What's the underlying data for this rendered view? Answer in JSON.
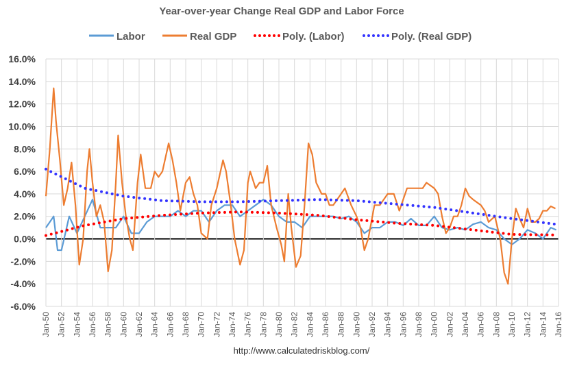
{
  "chart_data": {
    "type": "line",
    "title": "Year-over-year Change Real GDP and Labor Force",
    "footer": "http://www.calculatedriskblog.com/",
    "ylim": [
      -6,
      16
    ],
    "yticks": [
      "16.0%",
      "14.0%",
      "12.0%",
      "10.0%",
      "8.0%",
      "6.0%",
      "4.0%",
      "2.0%",
      "0.0%",
      "-2.0%",
      "-4.0%",
      "-6.0%"
    ],
    "yvalues": [
      16,
      14,
      12,
      10,
      8,
      6,
      4,
      2,
      0,
      -2,
      -4,
      -6
    ],
    "xlim": [
      1950,
      2016
    ],
    "xticks": [
      "Jan-50",
      "Jan-52",
      "Jan-54",
      "Jan-56",
      "Jan-58",
      "Jan-60",
      "Jan-62",
      "Jan-64",
      "Jan-66",
      "Jan-68",
      "Jan-70",
      "Jan-72",
      "Jan-74",
      "Jan-76",
      "Jan-78",
      "Jan-80",
      "Jan-82",
      "Jan-84",
      "Jan-86",
      "Jan-88",
      "Jan-90",
      "Jan-92",
      "Jan-94",
      "Jan-96",
      "Jan-98",
      "Jan-00",
      "Jan-02",
      "Jan-04",
      "Jan-06",
      "Jan-08",
      "Jan-10",
      "Jan-12",
      "Jan-14",
      "Jan-16"
    ],
    "grid": true,
    "legend_placement": "top",
    "series": [
      {
        "name": "Labor",
        "color": "#5B9BD5",
        "style": "solid",
        "x": [
          1950,
          1951,
          1951.5,
          1952,
          1953,
          1954,
          1955,
          1956,
          1957,
          1958,
          1959,
          1960,
          1961,
          1962,
          1963,
          1964,
          1965,
          1966,
          1967,
          1968,
          1969,
          1970,
          1971,
          1972,
          1973,
          1974,
          1975,
          1976,
          1977,
          1978,
          1979,
          1980,
          1981,
          1982,
          1983,
          1984,
          1985,
          1986,
          1987,
          1988,
          1989,
          1990,
          1991,
          1992,
          1993,
          1994,
          1995,
          1996,
          1997,
          1998,
          1999,
          2000,
          2001,
          2002,
          2003,
          2004,
          2005,
          2006,
          2007,
          2008,
          2009,
          2010,
          2011,
          2012,
          2013,
          2014,
          2015,
          2015.7
        ],
        "y": [
          1,
          2,
          -1,
          -1,
          2,
          0.5,
          2,
          3.5,
          1,
          1,
          1,
          2,
          0.5,
          0.5,
          1.5,
          2,
          2,
          2,
          2.5,
          2,
          2.5,
          2.5,
          1.5,
          2.5,
          3,
          3,
          2,
          2.5,
          3,
          3.5,
          3,
          2,
          1.5,
          1.5,
          1,
          2,
          2,
          2,
          2,
          1.8,
          2,
          1.5,
          0.5,
          1,
          1,
          1.5,
          1.5,
          1.2,
          1.8,
          1.2,
          1.2,
          2,
          1,
          0.8,
          1,
          0.8,
          1.3,
          1.5,
          1,
          0.8,
          0,
          -0.5,
          0,
          0.8,
          0.5,
          0,
          1,
          0.8
        ]
      },
      {
        "name": "Real GDP",
        "color": "#ED7D31",
        "style": "solid",
        "x": [
          1950,
          1950.5,
          1951,
          1951.3,
          1951.8,
          1952.3,
          1952.8,
          1953.3,
          1953.8,
          1954.3,
          1954.8,
          1955.3,
          1955.6,
          1956,
          1956.5,
          1957,
          1957.5,
          1958,
          1958.5,
          1959,
          1959.3,
          1959.8,
          1960.3,
          1960.8,
          1961.2,
          1961.8,
          1962.2,
          1962.8,
          1963.5,
          1964,
          1964.5,
          1965,
          1965.8,
          1966.3,
          1966.8,
          1967.3,
          1968,
          1968.5,
          1969,
          1969.5,
          1970,
          1970.8,
          1971.3,
          1972,
          1972.8,
          1973.2,
          1973.8,
          1974.3,
          1975,
          1975.5,
          1976,
          1976.3,
          1977,
          1977.5,
          1978,
          1978.5,
          1979,
          1979.7,
          1980.3,
          1980.7,
          1981.2,
          1981.6,
          1982.2,
          1982.8,
          1983.3,
          1983.8,
          1984.3,
          1984.8,
          1985.5,
          1986,
          1986.5,
          1987,
          1988,
          1988.5,
          1989.3,
          1990,
          1990.5,
          1991,
          1991.5,
          1992.3,
          1993,
          1994,
          1994.8,
          1995.5,
          1996.5,
          1997.5,
          1998.5,
          1999,
          2000,
          2000.5,
          2001,
          2001.5,
          2002,
          2002.5,
          2003,
          2003.5,
          2004,
          2004.5,
          2005,
          2006,
          2006.5,
          2007,
          2007.8,
          2008.5,
          2009,
          2009.5,
          2010,
          2010.5,
          2011,
          2011.5,
          2012,
          2012.5,
          2013,
          2013.5,
          2014,
          2014.5,
          2015,
          2015.6
        ],
        "y": [
          3.8,
          8,
          13.4,
          10.5,
          7,
          3,
          4.5,
          6.8,
          3,
          -2.3,
          0,
          6,
          8,
          5,
          2,
          3,
          1.5,
          -2.9,
          -1,
          5,
          9.2,
          5,
          2,
          0,
          -1,
          5,
          7.5,
          4.5,
          4.5,
          6,
          5.5,
          6,
          8.5,
          7,
          5,
          2.5,
          5,
          5.5,
          4,
          3,
          0.5,
          0,
          3,
          4.5,
          7,
          6,
          3,
          0,
          -2.3,
          -1,
          5,
          6,
          4.5,
          5,
          5,
          6.5,
          3,
          1,
          -0.5,
          -2,
          4,
          1,
          -2.5,
          -1.5,
          3,
          8.5,
          7.5,
          5,
          4,
          4,
          3,
          3,
          4,
          4.5,
          3,
          2,
          1,
          -1,
          0,
          3,
          3,
          4,
          4,
          2.5,
          4.5,
          4.5,
          4.5,
          5,
          4.5,
          4,
          2,
          0.5,
          1,
          2,
          2,
          3,
          4.5,
          3.8,
          3.5,
          3,
          2.5,
          1.5,
          2,
          0,
          -3,
          -4,
          0,
          2.7,
          1.8,
          1,
          2.7,
          1.5,
          1.5,
          1.8,
          2.5,
          2.5,
          2.9,
          2.7
        ]
      },
      {
        "name": "Poly. (Labor)",
        "color": "#FF0000",
        "style": "dotted",
        "x": [
          1950,
          1955,
          1960,
          1965,
          1970,
          1975,
          1980,
          1985,
          1990,
          1995,
          2000,
          2005,
          2010,
          2015.7
        ],
        "y": [
          0.3,
          1.2,
          1.8,
          2.1,
          2.3,
          2.4,
          2.3,
          2.1,
          1.7,
          1.4,
          1.2,
          0.8,
          0.4,
          0.35
        ]
      },
      {
        "name": "Poly. (Real GDP)",
        "color": "#3333FF",
        "style": "dotted",
        "x": [
          1950,
          1955,
          1960,
          1965,
          1970,
          1975,
          1980,
          1985,
          1990,
          1995,
          2000,
          2005,
          2010,
          2015.7
        ],
        "y": [
          6.2,
          4.5,
          3.8,
          3.4,
          3.3,
          3.3,
          3.4,
          3.5,
          3.4,
          3.1,
          2.8,
          2.3,
          1.8,
          1.3
        ]
      }
    ]
  }
}
